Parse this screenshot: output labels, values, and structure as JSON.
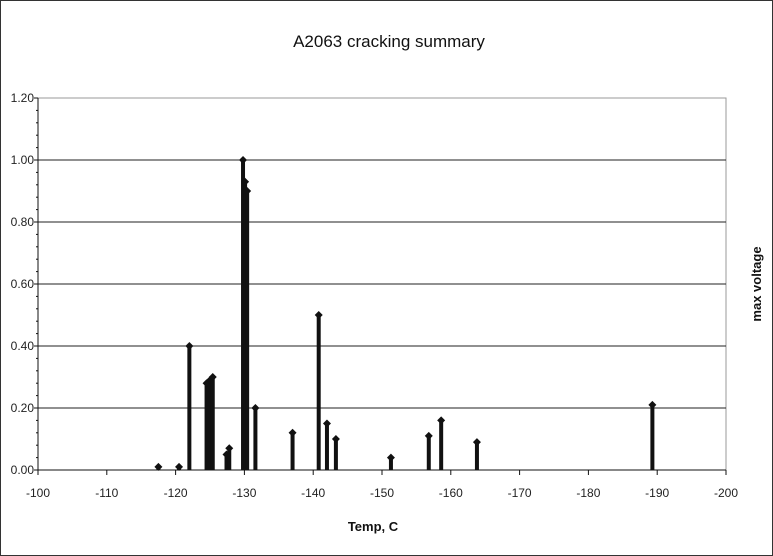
{
  "chart_data": {
    "type": "bar",
    "title": "A2063 cracking summary",
    "xlabel": "Temp, C",
    "ylabel": "max voltage",
    "xlim": [
      -100,
      -200
    ],
    "ylim": [
      0,
      1.2
    ],
    "x_ticks": [
      "-100",
      "-110",
      "-120",
      "-130",
      "-140",
      "-150",
      "-160",
      "-170",
      "-180",
      "-190",
      "-200"
    ],
    "y_ticks": [
      "0.00",
      "0.20",
      "0.40",
      "0.60",
      "0.80",
      "1.00",
      "1.20"
    ],
    "grid": true,
    "legend": "none",
    "points": [
      {
        "x": -117.5,
        "y": 0.01
      },
      {
        "x": -120.5,
        "y": 0.01
      },
      {
        "x": -122.0,
        "y": 0.4
      },
      {
        "x": -124.5,
        "y": 0.28
      },
      {
        "x": -125.0,
        "y": 0.29
      },
      {
        "x": -125.4,
        "y": 0.3
      },
      {
        "x": -127.4,
        "y": 0.05
      },
      {
        "x": -127.8,
        "y": 0.07
      },
      {
        "x": -129.8,
        "y": 1.0
      },
      {
        "x": -130.1,
        "y": 0.93
      },
      {
        "x": -130.4,
        "y": 0.9
      },
      {
        "x": -131.6,
        "y": 0.2
      },
      {
        "x": -137.0,
        "y": 0.12
      },
      {
        "x": -140.8,
        "y": 0.5
      },
      {
        "x": -142.0,
        "y": 0.15
      },
      {
        "x": -143.3,
        "y": 0.1
      },
      {
        "x": -151.3,
        "y": 0.04
      },
      {
        "x": -156.8,
        "y": 0.11
      },
      {
        "x": -158.6,
        "y": 0.16
      },
      {
        "x": -163.8,
        "y": 0.09
      },
      {
        "x": -189.3,
        "y": 0.21
      }
    ],
    "colors": {
      "bar": "#111111",
      "grid": "#222222",
      "plot_border": "#999999"
    }
  }
}
